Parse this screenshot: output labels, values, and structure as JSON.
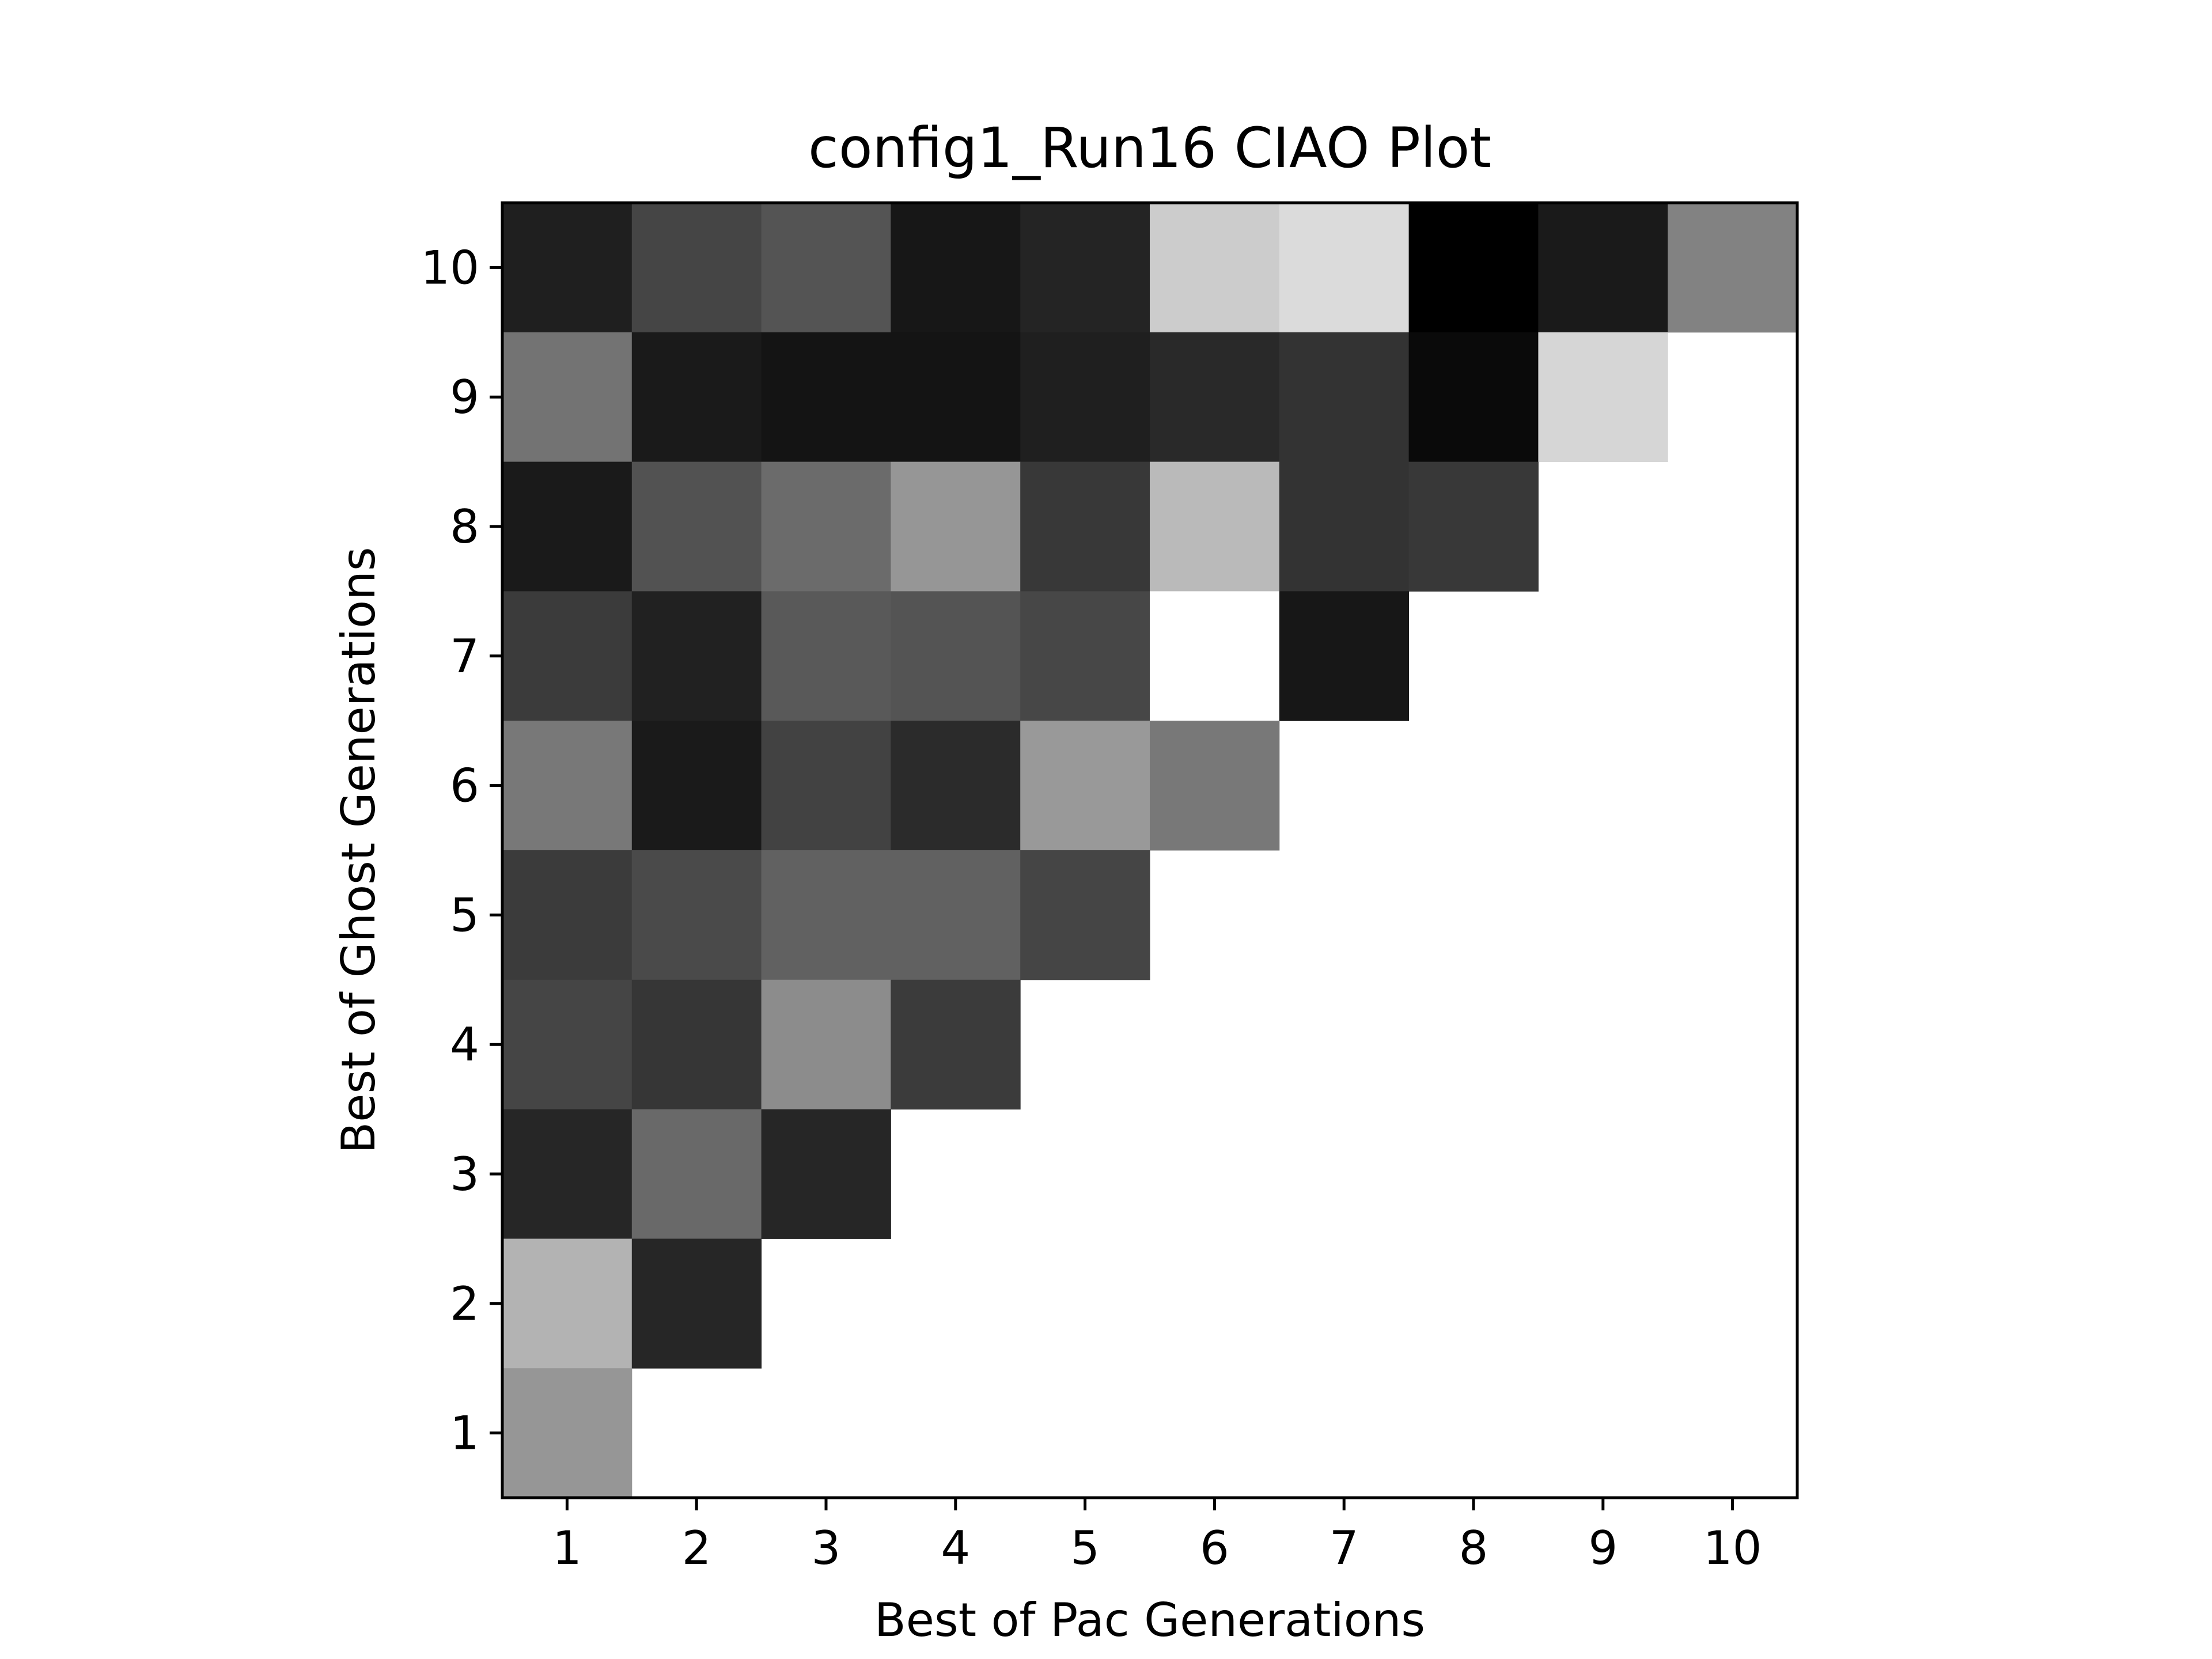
{
  "chart_data": {
    "type": "heatmap",
    "title": "config1_Run16 CIAO Plot",
    "xlabel": "Best of Pac Generations",
    "ylabel": "Best of Ghost Generations",
    "x_ticks": [
      "1",
      "2",
      "3",
      "4",
      "5",
      "6",
      "7",
      "8",
      "9",
      "10"
    ],
    "y_ticks": [
      "1",
      "2",
      "3",
      "4",
      "5",
      "6",
      "7",
      "8",
      "9",
      "10"
    ],
    "xlim": [
      0.5,
      10.5
    ],
    "ylim": [
      0.5,
      10.5
    ],
    "colormap": "gray",
    "value_range": [
      0,
      1
    ],
    "note_scale": "cell brightness in 0-1 (0 = black, 1 = white); empty cells are blank",
    "cells": [
      {
        "ghost": 10,
        "values": [
          0.12,
          0.27,
          0.33,
          0.09,
          0.14,
          0.8,
          0.86,
          0.0,
          0.1,
          0.51
        ]
      },
      {
        "ghost": 9,
        "values": [
          0.45,
          0.1,
          0.08,
          0.08,
          0.12,
          0.16,
          0.2,
          0.04,
          0.84,
          null
        ]
      },
      {
        "ghost": 8,
        "values": [
          0.1,
          0.32,
          0.42,
          0.59,
          0.22,
          0.73,
          0.2,
          0.22,
          null,
          null
        ]
      },
      {
        "ghost": 7,
        "values": [
          0.23,
          0.13,
          0.35,
          0.33,
          0.28,
          1.0,
          0.09,
          null,
          null,
          null
        ]
      },
      {
        "ghost": 6,
        "values": [
          0.47,
          0.1,
          0.26,
          0.17,
          0.6,
          0.47,
          null,
          null,
          null,
          null
        ]
      },
      {
        "ghost": 5,
        "values": [
          0.23,
          0.29,
          0.38,
          0.38,
          0.27,
          null,
          null,
          null,
          null,
          null
        ]
      },
      {
        "ghost": 4,
        "values": [
          0.27,
          0.21,
          0.55,
          0.23,
          null,
          null,
          null,
          null,
          null,
          null
        ]
      },
      {
        "ghost": 3,
        "values": [
          0.15,
          0.41,
          0.15,
          null,
          null,
          null,
          null,
          null,
          null,
          null
        ]
      },
      {
        "ghost": 2,
        "values": [
          0.7,
          0.15,
          null,
          null,
          null,
          null,
          null,
          null,
          null,
          null
        ]
      },
      {
        "ghost": 1,
        "values": [
          0.59,
          null,
          null,
          null,
          null,
          null,
          null,
          null,
          null,
          null
        ]
      }
    ]
  }
}
